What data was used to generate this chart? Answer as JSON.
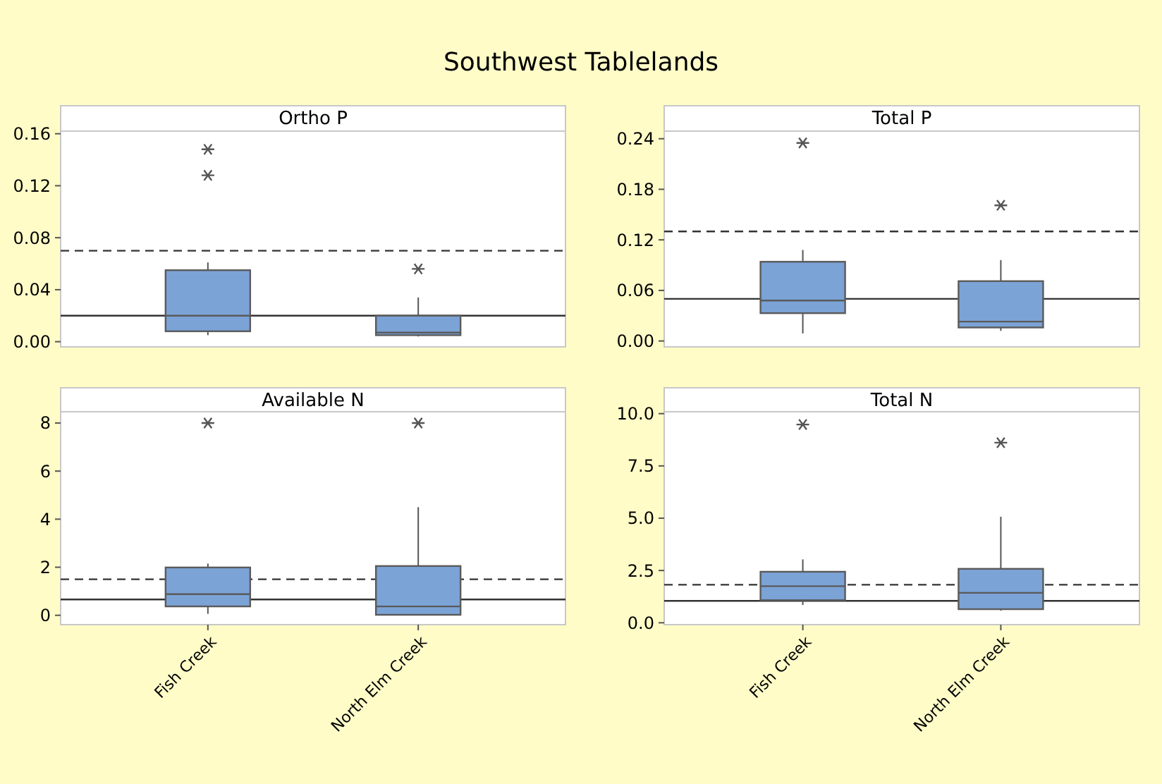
{
  "chart_data": [
    {
      "type": "box",
      "title": "Southwest Tablelands",
      "subtitle": "Ortho P",
      "categories": [
        null,
        null
      ],
      "color": "#7ba3d6",
      "marker": "star",
      "tick_labels": "y",
      "ylim": [
        -0.004,
        0.162
      ],
      "yticks": [
        {
          "value": 0,
          "label": "0.00"
        },
        0.04,
        0.08,
        0.12,
        0.16
      ],
      "boxes": [
        {
          "low": 0.005,
          "q1": 0.008,
          "median": 0.02,
          "q3": 0.055,
          "high": 0.061,
          "outliers": [
            0.128,
            0.148
          ]
        },
        {
          "low": 0.004,
          "q1": 0.005,
          "median": 0.007,
          "q3": 0.02,
          "high": 0.034,
          "outliers": [
            0.056
          ]
        }
      ],
      "ref_lines": [
        {
          "axis": "y",
          "value": 0.07,
          "line_style": "dashed"
        },
        {
          "axis": "y",
          "value": 0.02,
          "line_style": "solid"
        }
      ]
    },
    {
      "type": "box",
      "subtitle": "Total P",
      "categories": [
        null,
        null
      ],
      "color": "#7ba3d6",
      "marker": "star",
      "tick_labels": "y",
      "ylim": [
        -0.007,
        0.249
      ],
      "yticks": [
        {
          "value": 0,
          "label": "0.00"
        },
        0.06,
        0.12,
        0.18,
        0.24
      ],
      "boxes": [
        {
          "low": 0.009,
          "q1": 0.033,
          "median": 0.048,
          "q3": 0.094,
          "high": 0.108,
          "outliers": [
            0.235
          ]
        },
        {
          "low": 0.012,
          "q1": 0.016,
          "median": 0.023,
          "q3": 0.071,
          "high": 0.096,
          "outliers": [
            0.161
          ]
        }
      ],
      "ref_lines": [
        {
          "axis": "y",
          "value": 0.13,
          "line_style": "dashed"
        },
        {
          "axis": "y",
          "value": 0.05,
          "line_style": "solid"
        }
      ]
    },
    {
      "type": "box",
      "subtitle": "Available N",
      "categories": [
        "Fish Creek",
        "North Elm Creek"
      ],
      "color": "#7ba3d6",
      "marker": "star",
      "ylim": [
        -0.39,
        8.47
      ],
      "yticks": [
        0,
        2,
        4,
        6,
        8
      ],
      "boxes": [
        {
          "low": 0.06,
          "q1": 0.37,
          "median": 0.88,
          "q3": 1.99,
          "high": 2.15,
          "outliers": [
            8
          ]
        },
        {
          "low": 0.02,
          "q1": 0.02,
          "median": 0.37,
          "q3": 2.05,
          "high": 4.5,
          "outliers": [
            8
          ]
        }
      ],
      "ref_lines": [
        {
          "axis": "y",
          "value": 1.5,
          "line_style": "dashed"
        },
        {
          "axis": "y",
          "value": 0.66,
          "line_style": "solid"
        }
      ]
    },
    {
      "type": "box",
      "subtitle": "Total N",
      "categories": [
        "Fish Creek",
        "North Elm Creek"
      ],
      "color": "#7ba3d6",
      "marker": "star",
      "ylim": [
        -0.09,
        10.09
      ],
      "yticks": [
        {
          "value": 0,
          "label": "0.0"
        },
        2.5,
        {
          "value": 5,
          "label": "5.0"
        },
        7.5,
        {
          "value": 10,
          "label": "10.0"
        }
      ],
      "boxes": [
        {
          "low": 0.85,
          "q1": 1.08,
          "median": 1.75,
          "q3": 2.44,
          "high": 3.03,
          "outliers": [
            9.48
          ]
        },
        {
          "low": 0.58,
          "q1": 0.65,
          "median": 1.43,
          "q3": 2.58,
          "high": 5.07,
          "outliers": [
            8.61
          ]
        }
      ],
      "ref_lines": [
        {
          "axis": "y",
          "value": 1.82,
          "line_style": "dashed"
        },
        {
          "axis": "y",
          "value": 1.05,
          "line_style": "solid"
        }
      ]
    }
  ]
}
